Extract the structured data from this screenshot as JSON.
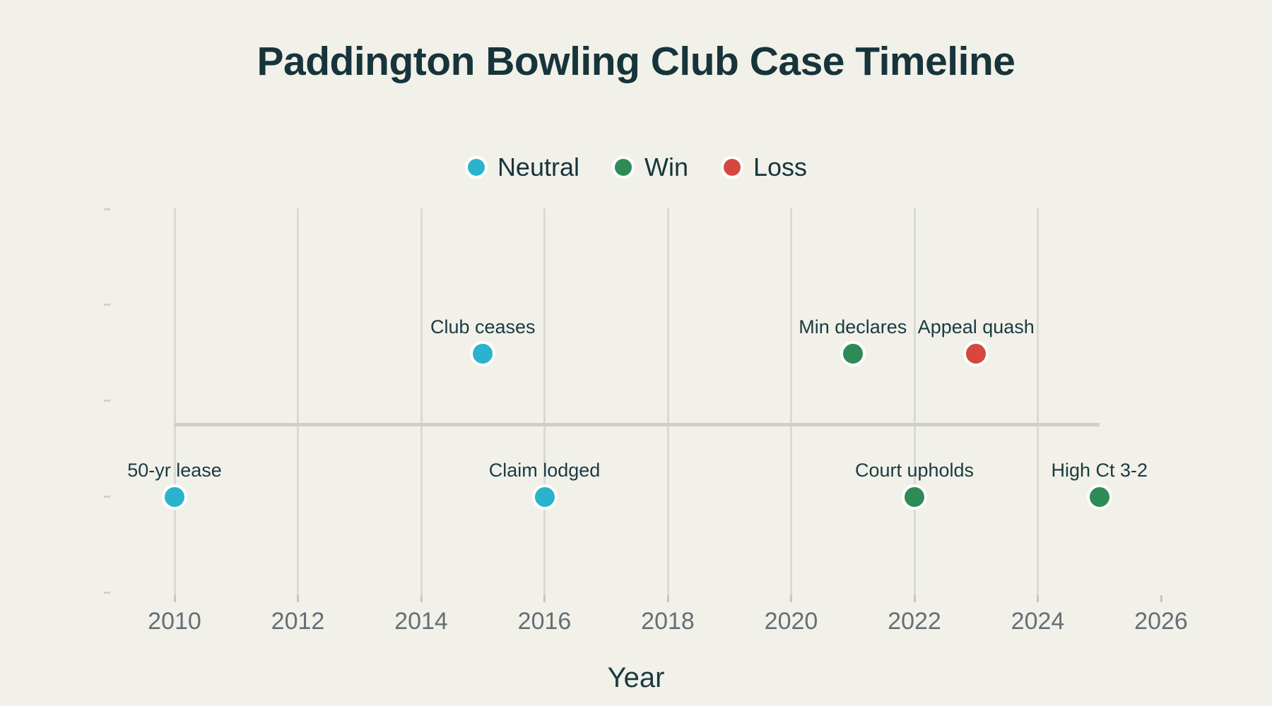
{
  "title": "Paddington Bowling Club Case Timeline",
  "colors": {
    "background": "#f1f1e9",
    "heading_text": "#17343b",
    "annotation_text": "#1b3a41",
    "axis_tick_text": "#646f75",
    "gridline": "#dadad3",
    "baseline": "#cfcfc8",
    "marker_ring": "#ffffff",
    "neutral": "#2bb3cd",
    "win": "#2f8b56",
    "loss": "#d6483f"
  },
  "legend": {
    "items": [
      {
        "label": "Neutral",
        "color": "#2bb3cd"
      },
      {
        "label": "Win",
        "color": "#2f8b56"
      },
      {
        "label": "Loss",
        "color": "#d6483f"
      }
    ],
    "position": "top-center"
  },
  "chart_data": {
    "type": "scatter",
    "subtype": "event-timeline",
    "title": "Paddington Bowling Club Case Timeline",
    "xlabel": "Year",
    "ylabel": "",
    "x_ticks": [
      2010,
      2012,
      2014,
      2016,
      2018,
      2020,
      2022,
      2024,
      2026
    ],
    "xlim": [
      2008.9,
      2026.8
    ],
    "y_axis": {
      "tick_count": 5,
      "tick_labels": [],
      "labels_visible": false
    },
    "grid": "vertical-only",
    "baseline": {
      "y": 0,
      "from_year": 2010,
      "to_year": 2025
    },
    "series": [
      {
        "name": "Neutral",
        "color": "#2bb3cd",
        "points": [
          {
            "x": 2010,
            "y": -1,
            "label": "50-yr lease"
          },
          {
            "x": 2015,
            "y": 1,
            "label": "Club ceases"
          },
          {
            "x": 2016,
            "y": -1,
            "label": "Claim lodged"
          }
        ]
      },
      {
        "name": "Win",
        "color": "#2f8b56",
        "points": [
          {
            "x": 2021,
            "y": 1,
            "label": "Min declares"
          },
          {
            "x": 2022,
            "y": -1,
            "label": "Court upholds"
          },
          {
            "x": 2025,
            "y": -1,
            "label": "High Ct 3-2"
          }
        ]
      },
      {
        "name": "Loss",
        "color": "#d6483f",
        "points": [
          {
            "x": 2023,
            "y": 1,
            "label": "Appeal quash"
          }
        ]
      }
    ]
  }
}
